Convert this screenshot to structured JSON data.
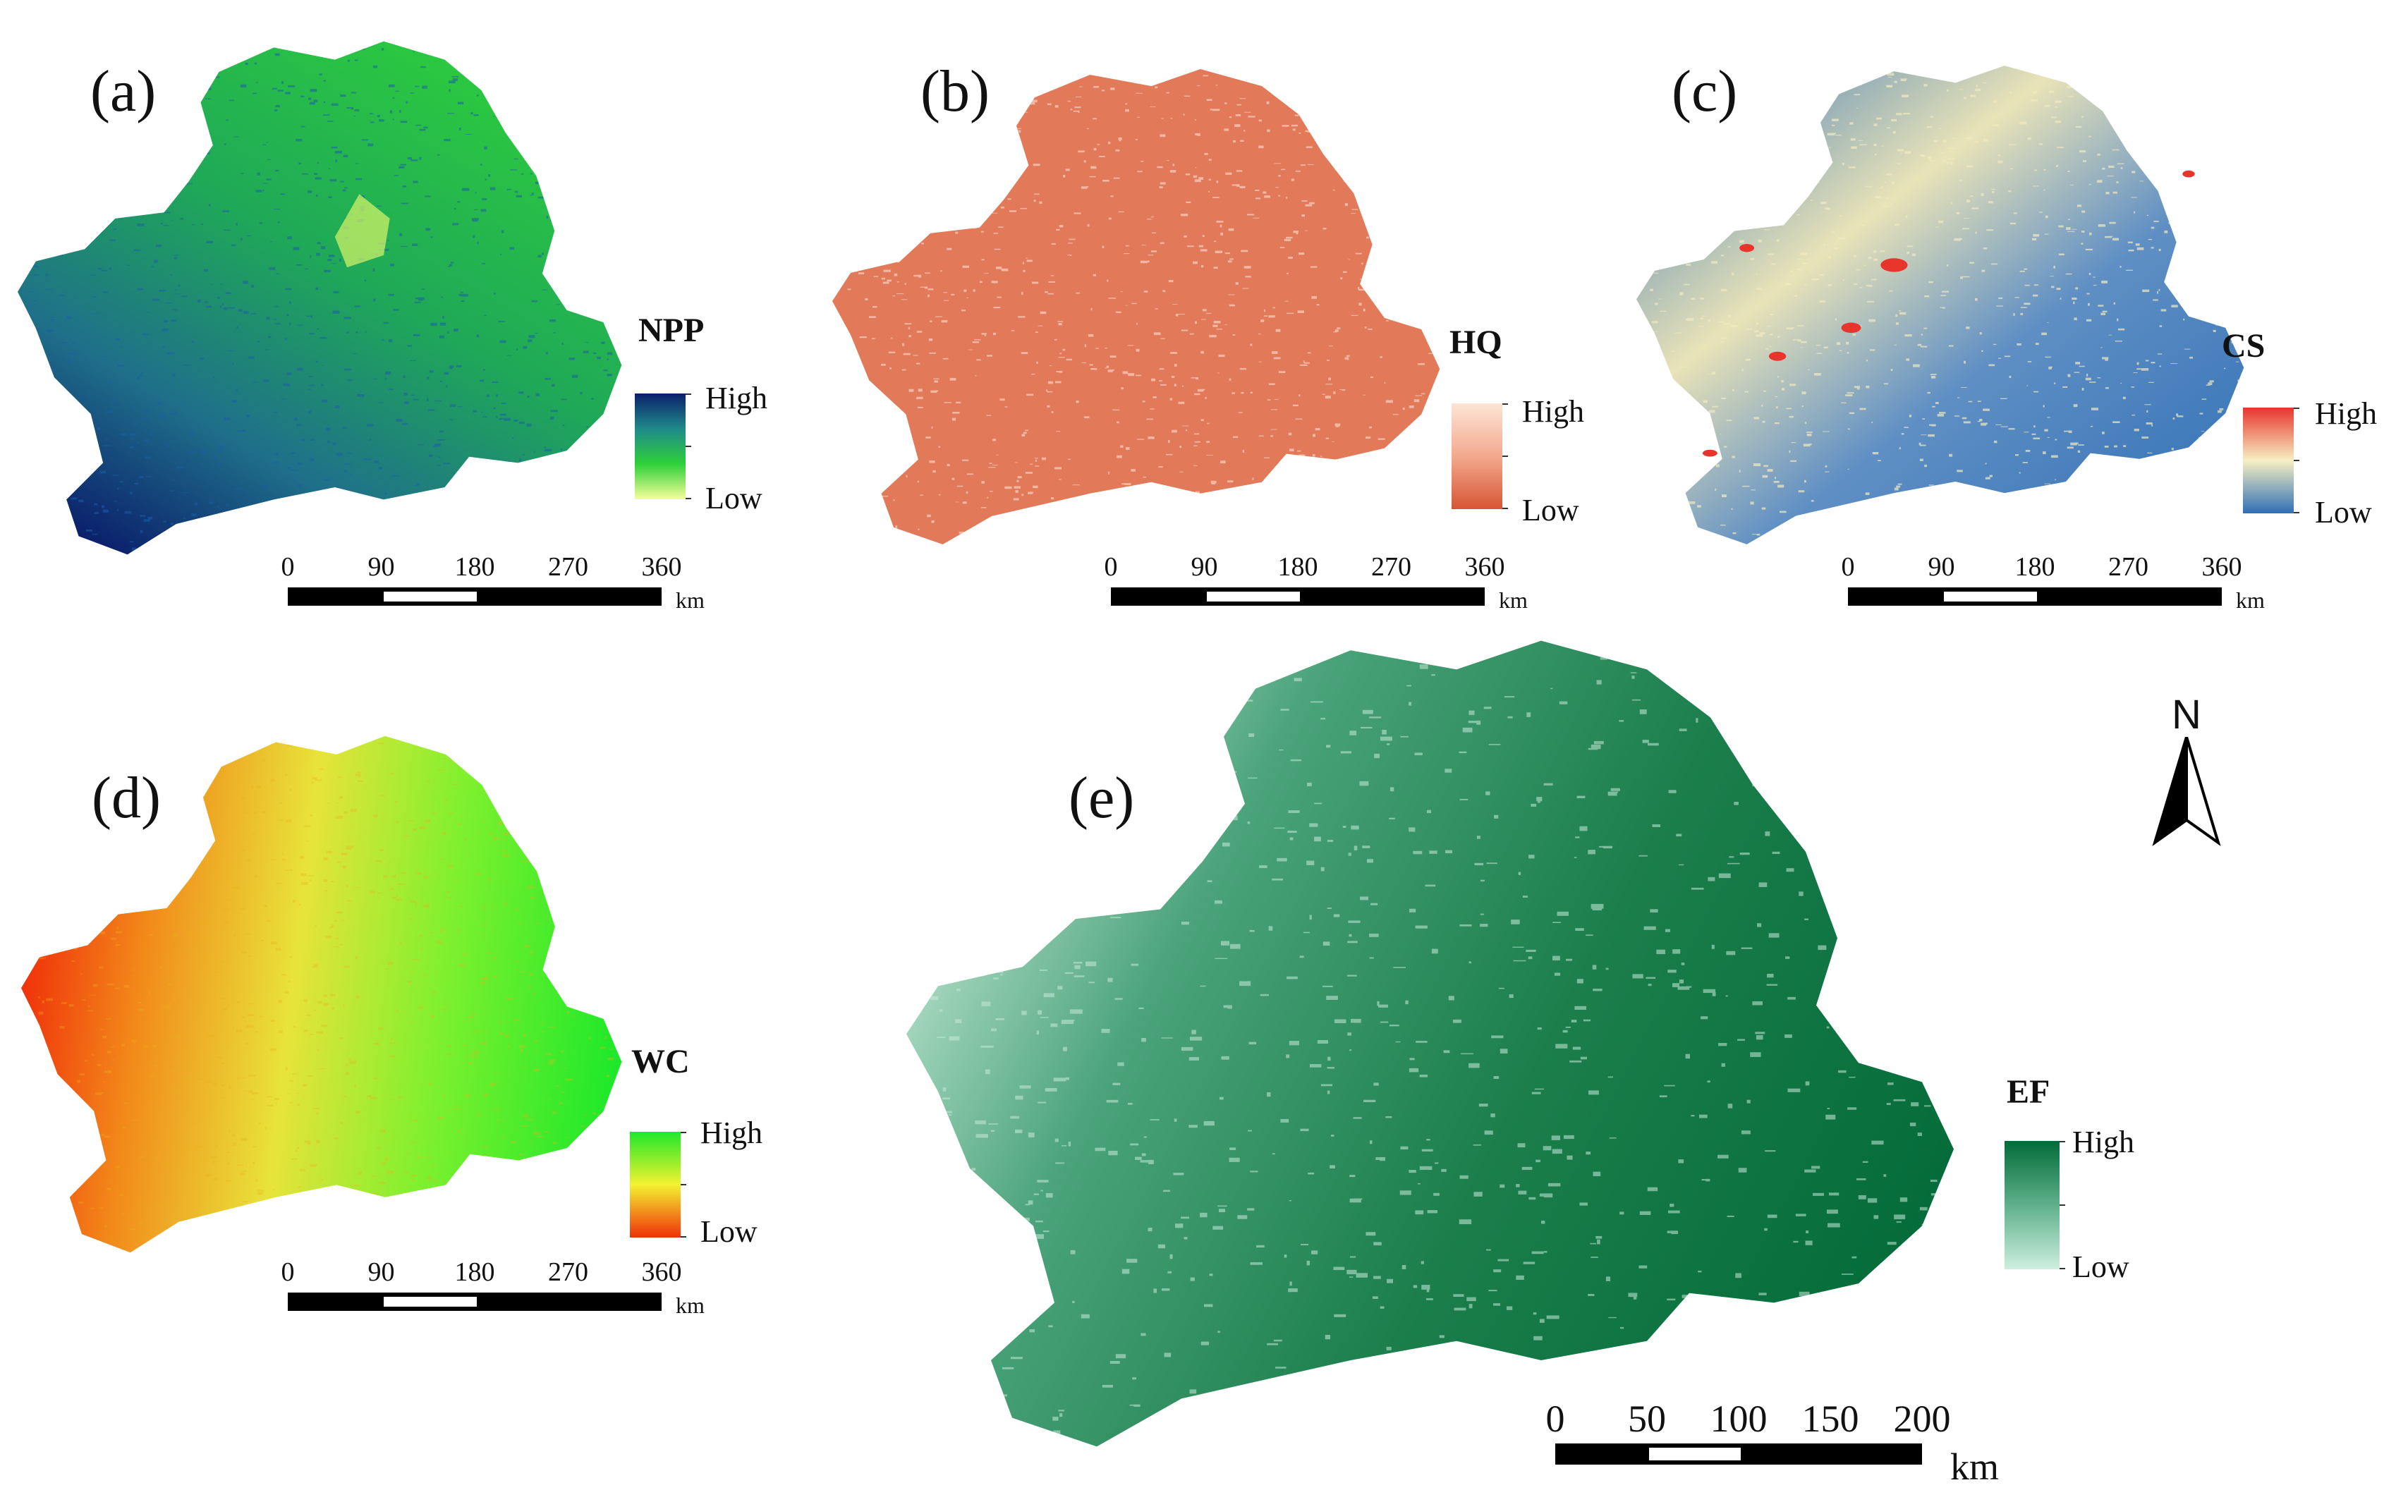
{
  "panels": [
    {
      "id": "a",
      "label": "(a)",
      "legend_title": "NPP",
      "legend_high": "High",
      "legend_low": "Low",
      "colors": [
        "#0b1f6b",
        "#1f8a8a",
        "#2fd03a",
        "#f5ff9a"
      ],
      "texture": "#1a5fa8",
      "scale_ticks": [
        "0",
        "90",
        "180",
        "270",
        "360"
      ],
      "scale_unit": "km"
    },
    {
      "id": "b",
      "label": "(b)",
      "legend_title": "HQ",
      "legend_high": "High",
      "legend_low": "Low",
      "colors": [
        "#fde4d6",
        "#f3a98e",
        "#d65535"
      ],
      "texture": "#fbe1d4",
      "scale_ticks": [
        "0",
        "90",
        "180",
        "270",
        "360"
      ],
      "scale_unit": "km"
    },
    {
      "id": "c",
      "label": "(c)",
      "legend_title": "CS",
      "legend_high": "High",
      "legend_low": "Low",
      "colors": [
        "#e8352c",
        "#f6efc2",
        "#2f6fb5"
      ],
      "texture": "#f3eac0",
      "scale_ticks": [
        "0",
        "90",
        "180",
        "270",
        "360"
      ],
      "scale_unit": "km"
    },
    {
      "id": "d",
      "label": "(d)",
      "legend_title": "WC",
      "legend_high": "High",
      "legend_low": "Low",
      "colors": [
        "#1ee82a",
        "#f3f230",
        "#f0300a"
      ],
      "texture": "#e9b21e",
      "scale_ticks": [
        "0",
        "90",
        "180",
        "270",
        "360"
      ],
      "scale_unit": "km"
    },
    {
      "id": "e",
      "label": "(e)",
      "legend_title": "EF",
      "legend_high": "High",
      "legend_low": "Low",
      "colors": [
        "#036b39",
        "#5fb08a",
        "#cdeee0"
      ],
      "texture": "#c8ead9",
      "scale_ticks": [
        "0",
        "50",
        "100",
        "150",
        "200"
      ],
      "scale_unit": "km"
    }
  ],
  "north_arrow": {
    "label": "N"
  }
}
